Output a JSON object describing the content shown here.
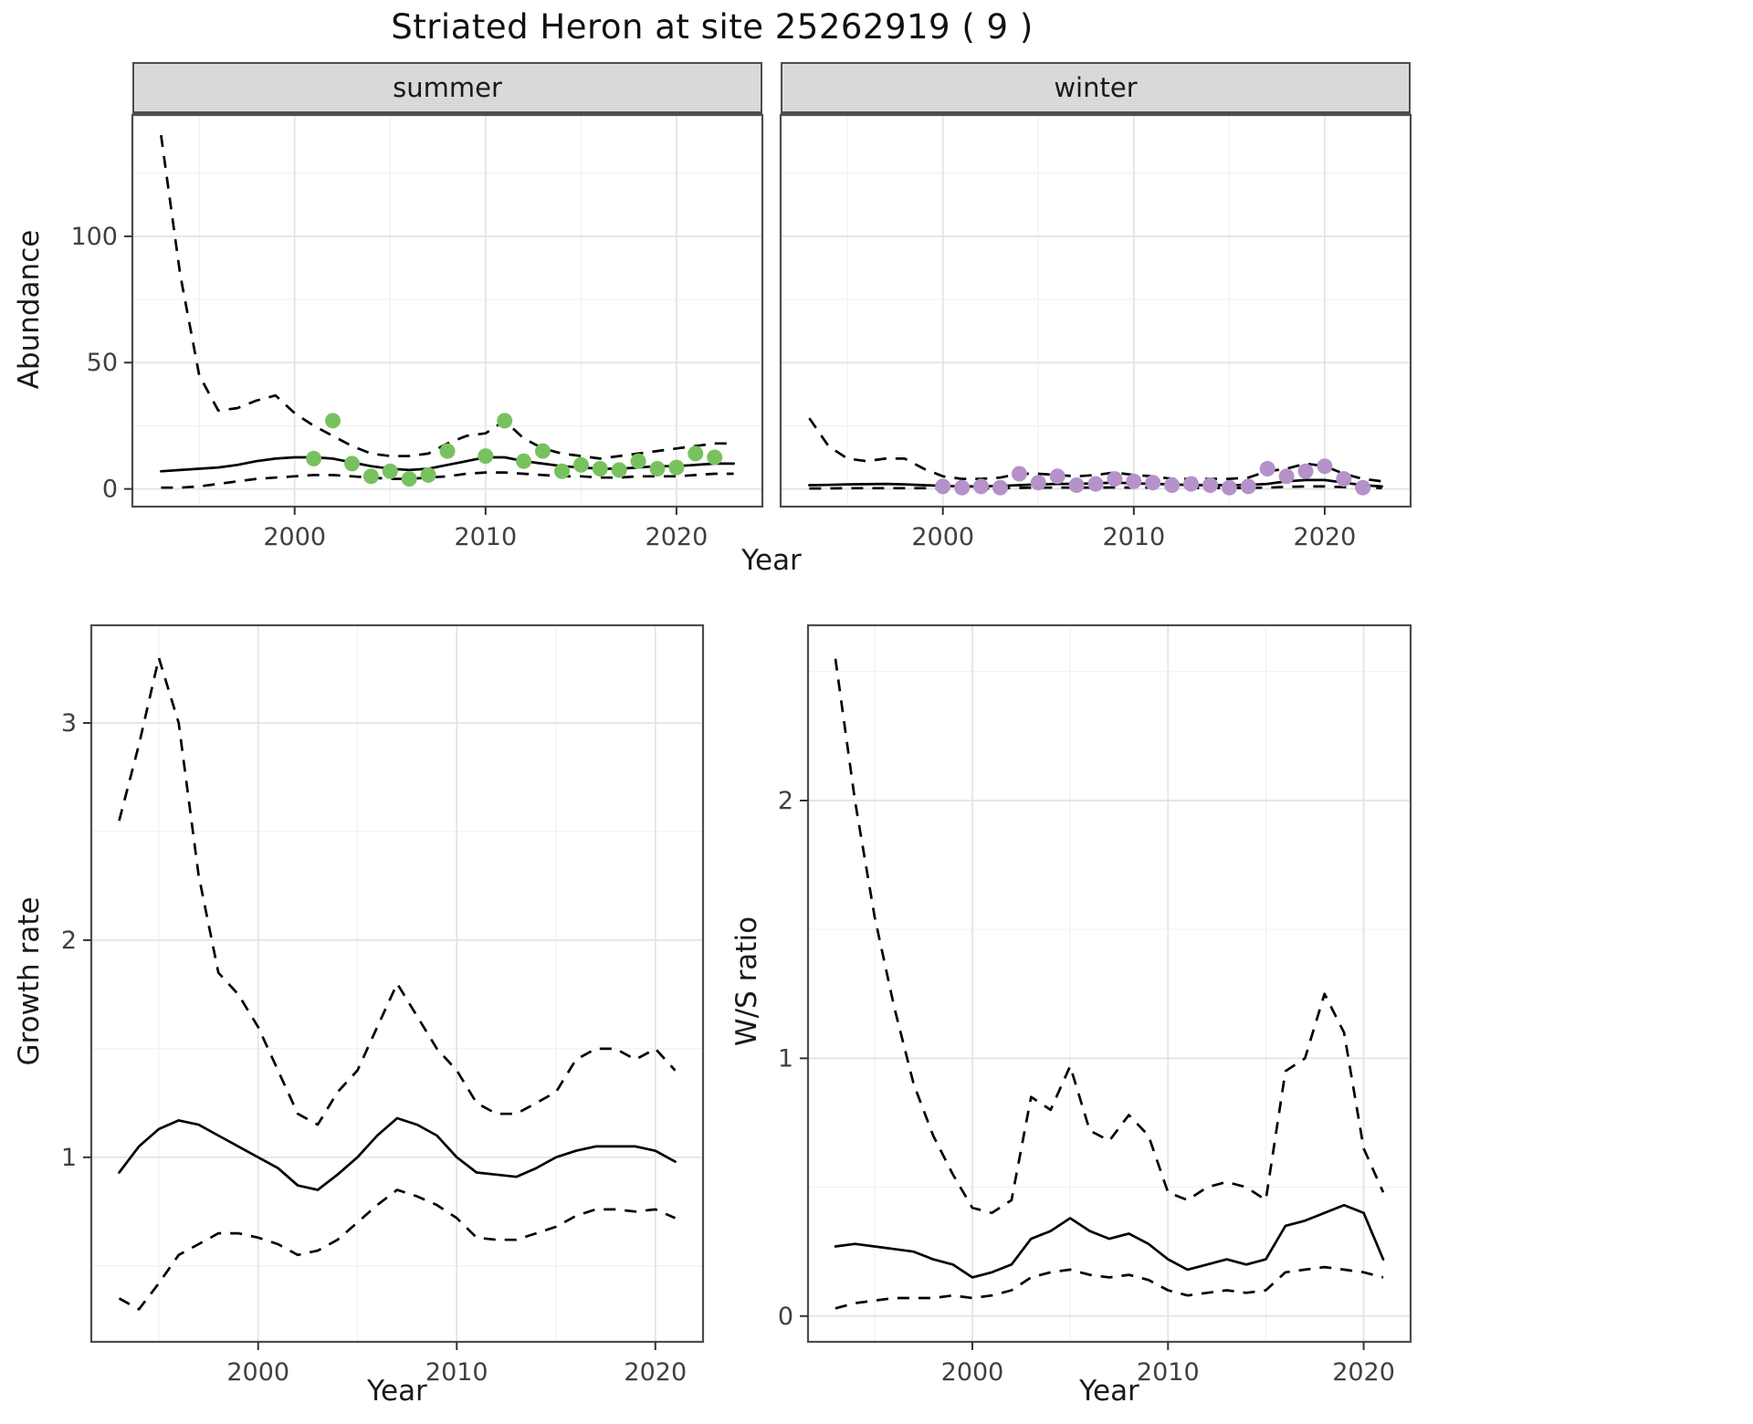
{
  "page": {
    "title": "Striated Heron at site 25262919 ( 9 )"
  },
  "colors": {
    "summer_point": "#77c25f",
    "winter_point": "#b592c9",
    "line": "#000000",
    "strip_bg": "#d9d9d9",
    "grid_major": "#e3e3e3",
    "grid_minor": "#f1f1f1",
    "panel_border": "#4d4d4d",
    "axis_text": "#404040"
  },
  "facets": {
    "summer": "summer",
    "winter": "winter"
  },
  "labels": {
    "y_top": "Abundance",
    "x_top": "Year",
    "y_growth": "Growth rate",
    "x_growth": "Year",
    "y_ws": "W/S ratio",
    "x_ws": "Year"
  },
  "chart_data": [
    {
      "id": "abundance-summer",
      "type": "line+scatter",
      "facet": "summer",
      "xlabel": "Year",
      "ylabel": "Abundance",
      "xlim": [
        1991.5,
        2024.5
      ],
      "ylim": [
        -7,
        148
      ],
      "xticks": [
        2000,
        2010,
        2020
      ],
      "yticks": [
        0,
        50,
        100
      ],
      "xticks_minor": [
        1995,
        2005,
        2015
      ],
      "yticks_minor": [
        25,
        75,
        125
      ],
      "legend": "off",
      "grid": "on",
      "series": [
        {
          "name": "fit",
          "style": "solid",
          "x": [
            1993,
            1994,
            1995,
            1996,
            1997,
            1998,
            1999,
            2000,
            2001,
            2002,
            2003,
            2004,
            2005,
            2006,
            2007,
            2008,
            2009,
            2010,
            2011,
            2012,
            2013,
            2014,
            2015,
            2016,
            2017,
            2018,
            2019,
            2020,
            2021,
            2022,
            2023
          ],
          "y": [
            7,
            7.5,
            8,
            8.5,
            9.5,
            11,
            12,
            12.5,
            12.5,
            12,
            10.5,
            9,
            8,
            7.5,
            8,
            9.5,
            11,
            12.5,
            12.5,
            11,
            10,
            9,
            8.5,
            8,
            8,
            8.5,
            9,
            9,
            9.5,
            10,
            10
          ]
        },
        {
          "name": "upper-ci",
          "style": "dashed",
          "x": [
            1993,
            1994,
            1995,
            1996,
            1997,
            1998,
            1999,
            2000,
            2001,
            2002,
            2003,
            2004,
            2005,
            2006,
            2007,
            2008,
            2009,
            2010,
            2011,
            2012,
            2013,
            2014,
            2015,
            2016,
            2017,
            2018,
            2019,
            2020,
            2021,
            2022,
            2023
          ],
          "y": [
            140,
            85,
            45,
            31,
            32,
            35,
            37,
            30,
            25,
            21,
            17,
            14,
            13,
            13,
            14,
            18,
            21,
            22,
            27,
            20,
            16,
            14,
            13,
            12,
            13,
            14,
            15,
            16,
            17,
            18,
            18
          ]
        },
        {
          "name": "lower-ci",
          "style": "dashed",
          "x": [
            1993,
            1994,
            1995,
            1996,
            1997,
            1998,
            1999,
            2000,
            2001,
            2002,
            2003,
            2004,
            2005,
            2006,
            2007,
            2008,
            2009,
            2010,
            2011,
            2012,
            2013,
            2014,
            2015,
            2016,
            2017,
            2018,
            2019,
            2020,
            2021,
            2022,
            2023
          ],
          "y": [
            0.5,
            0.5,
            1,
            2,
            3,
            4,
            4.5,
            5,
            5.5,
            5.5,
            5,
            4.5,
            4,
            4,
            4.5,
            5,
            6,
            6.5,
            6.5,
            6,
            5.5,
            5,
            5,
            4.5,
            4.5,
            5,
            5,
            5,
            5.5,
            6,
            6
          ]
        },
        {
          "name": "observations",
          "style": "points",
          "color": "#77c25f",
          "x": [
            2001,
            2002,
            2003,
            2004,
            2005,
            2006,
            2007,
            2008,
            2010,
            2011,
            2012,
            2013,
            2014,
            2015,
            2016,
            2017,
            2018,
            2019,
            2020,
            2021,
            2022
          ],
          "y": [
            12,
            27,
            10,
            5,
            7,
            4,
            5.5,
            15,
            13,
            27,
            11,
            15,
            7,
            9.5,
            8,
            7.5,
            11,
            8,
            8.5,
            14,
            12.5
          ]
        }
      ]
    },
    {
      "id": "abundance-winter",
      "type": "line+scatter",
      "facet": "winter",
      "xlabel": "Year",
      "ylabel": "Abundance",
      "xlim": [
        1991.5,
        2024.5
      ],
      "ylim": [
        -7,
        148
      ],
      "xticks": [
        2000,
        2010,
        2020
      ],
      "yticks": [
        0,
        50,
        100
      ],
      "xticks_minor": [
        1995,
        2005,
        2015
      ],
      "yticks_minor": [
        25,
        75,
        125
      ],
      "legend": "off",
      "grid": "on",
      "series": [
        {
          "name": "fit",
          "style": "solid",
          "x": [
            1993,
            1994,
            1995,
            1996,
            1997,
            1998,
            1999,
            2000,
            2001,
            2002,
            2003,
            2004,
            2005,
            2006,
            2007,
            2008,
            2009,
            2010,
            2011,
            2012,
            2013,
            2014,
            2015,
            2016,
            2017,
            2018,
            2019,
            2020,
            2021,
            2022,
            2023
          ],
          "y": [
            1.5,
            1.6,
            1.8,
            1.9,
            2,
            1.8,
            1.5,
            1.2,
            1,
            1,
            1.2,
            1.5,
            1.8,
            2,
            2,
            2.2,
            2.5,
            2.2,
            2,
            1.8,
            1.5,
            1.5,
            1.5,
            1.6,
            2,
            3,
            3.5,
            3.5,
            2.5,
            1.5,
            1
          ]
        },
        {
          "name": "upper-ci",
          "style": "dashed",
          "x": [
            1993,
            1994,
            1995,
            1996,
            1997,
            1998,
            1999,
            2000,
            2001,
            2002,
            2003,
            2004,
            2005,
            2006,
            2007,
            2008,
            2009,
            2010,
            2011,
            2012,
            2013,
            2014,
            2015,
            2016,
            2017,
            2018,
            2019,
            2020,
            2021,
            2022,
            2023
          ],
          "y": [
            28,
            17,
            12,
            11,
            12,
            12,
            8,
            5,
            4,
            4,
            4.5,
            6,
            6,
            5.5,
            5,
            5.5,
            6.5,
            5.5,
            5,
            4,
            4,
            4,
            4,
            4.5,
            7,
            8,
            10,
            9,
            6,
            4,
            3
          ]
        },
        {
          "name": "lower-ci",
          "style": "dashed",
          "x": [
            1993,
            1994,
            1995,
            1996,
            1997,
            1998,
            1999,
            2000,
            2001,
            2002,
            2003,
            2004,
            2005,
            2006,
            2007,
            2008,
            2009,
            2010,
            2011,
            2012,
            2013,
            2014,
            2015,
            2016,
            2017,
            2018,
            2019,
            2020,
            2021,
            2022,
            2023
          ],
          "y": [
            0.2,
            0.2,
            0.3,
            0.3,
            0.3,
            0.3,
            0.3,
            0.3,
            0.2,
            0.2,
            0.3,
            0.4,
            0.5,
            0.5,
            0.5,
            0.5,
            0.6,
            0.5,
            0.5,
            0.4,
            0.4,
            0.4,
            0.4,
            0.4,
            0.5,
            0.8,
            1,
            1,
            0.7,
            0.4,
            0.3
          ]
        },
        {
          "name": "observations",
          "style": "points",
          "color": "#b592c9",
          "x": [
            2000,
            2001,
            2002,
            2003,
            2004,
            2005,
            2006,
            2007,
            2008,
            2009,
            2010,
            2011,
            2012,
            2013,
            2014,
            2015,
            2016,
            2017,
            2018,
            2019,
            2020,
            2021,
            2022
          ],
          "y": [
            1,
            0.5,
            1,
            0.5,
            6,
            2.5,
            5,
            1.5,
            2,
            4,
            3,
            2.5,
            1.5,
            2,
            1.5,
            0.5,
            1,
            8,
            5,
            7,
            9,
            4,
            0.5
          ]
        }
      ]
    },
    {
      "id": "growth-rate",
      "type": "line",
      "xlabel": "Year",
      "ylabel": "Growth rate",
      "xlim": [
        1991.6,
        2022.4
      ],
      "ylim": [
        0.15,
        3.45
      ],
      "xticks": [
        2000,
        2010,
        2020
      ],
      "yticks": [
        1,
        2,
        3
      ],
      "xticks_minor": [
        1995,
        2005,
        2015
      ],
      "yticks_minor": [
        0.5,
        1.5,
        2.5
      ],
      "legend": "off",
      "grid": "on",
      "series": [
        {
          "name": "fit",
          "style": "solid",
          "x": [
            1993,
            1994,
            1995,
            1996,
            1997,
            1998,
            1999,
            2000,
            2001,
            2002,
            2003,
            2004,
            2005,
            2006,
            2007,
            2008,
            2009,
            2010,
            2011,
            2012,
            2013,
            2014,
            2015,
            2016,
            2017,
            2018,
            2019,
            2020,
            2021
          ],
          "y": [
            0.93,
            1.05,
            1.13,
            1.17,
            1.15,
            1.1,
            1.05,
            1.0,
            0.95,
            0.87,
            0.85,
            0.92,
            1.0,
            1.1,
            1.18,
            1.15,
            1.1,
            1.0,
            0.93,
            0.92,
            0.91,
            0.95,
            1.0,
            1.03,
            1.05,
            1.05,
            1.05,
            1.03,
            0.98
          ]
        },
        {
          "name": "upper-ci",
          "style": "dashed",
          "x": [
            1993,
            1994,
            1995,
            1996,
            1997,
            1998,
            1999,
            2000,
            2001,
            2002,
            2003,
            2004,
            2005,
            2006,
            2007,
            2008,
            2009,
            2010,
            2011,
            2012,
            2013,
            2014,
            2015,
            2016,
            2017,
            2018,
            2019,
            2020,
            2021
          ],
          "y": [
            2.55,
            2.9,
            3.3,
            3.0,
            2.3,
            1.85,
            1.75,
            1.6,
            1.4,
            1.2,
            1.15,
            1.3,
            1.4,
            1.6,
            1.8,
            1.65,
            1.5,
            1.4,
            1.25,
            1.2,
            1.2,
            1.25,
            1.3,
            1.45,
            1.5,
            1.5,
            1.45,
            1.5,
            1.4
          ]
        },
        {
          "name": "lower-ci",
          "style": "dashed",
          "x": [
            1993,
            1994,
            1995,
            1996,
            1997,
            1998,
            1999,
            2000,
            2001,
            2002,
            2003,
            2004,
            2005,
            2006,
            2007,
            2008,
            2009,
            2010,
            2011,
            2012,
            2013,
            2014,
            2015,
            2016,
            2017,
            2018,
            2019,
            2020,
            2021
          ],
          "y": [
            0.35,
            0.3,
            0.42,
            0.55,
            0.6,
            0.65,
            0.65,
            0.63,
            0.6,
            0.55,
            0.57,
            0.62,
            0.7,
            0.78,
            0.85,
            0.82,
            0.78,
            0.72,
            0.63,
            0.62,
            0.62,
            0.65,
            0.68,
            0.73,
            0.76,
            0.76,
            0.75,
            0.76,
            0.72
          ]
        }
      ]
    },
    {
      "id": "ws-ratio",
      "type": "line",
      "xlabel": "Year",
      "ylabel": "W/S ratio",
      "xlim": [
        1991.6,
        2022.4
      ],
      "ylim": [
        -0.1,
        2.68
      ],
      "xticks": [
        2000,
        2010,
        2020
      ],
      "yticks": [
        0,
        1,
        2
      ],
      "xticks_minor": [
        1995,
        2005,
        2015
      ],
      "yticks_minor": [
        0.5,
        1.5,
        2.5
      ],
      "legend": "off",
      "grid": "on",
      "series": [
        {
          "name": "fit",
          "style": "solid",
          "x": [
            1993,
            1994,
            1995,
            1996,
            1997,
            1998,
            1999,
            2000,
            2001,
            2002,
            2003,
            2004,
            2005,
            2006,
            2007,
            2008,
            2009,
            2010,
            2011,
            2012,
            2013,
            2014,
            2015,
            2016,
            2017,
            2018,
            2019,
            2020,
            2021
          ],
          "y": [
            0.27,
            0.28,
            0.27,
            0.26,
            0.25,
            0.22,
            0.2,
            0.15,
            0.17,
            0.2,
            0.3,
            0.33,
            0.38,
            0.33,
            0.3,
            0.32,
            0.28,
            0.22,
            0.18,
            0.2,
            0.22,
            0.2,
            0.22,
            0.35,
            0.37,
            0.4,
            0.43,
            0.4,
            0.22
          ]
        },
        {
          "name": "upper-ci",
          "style": "dashed",
          "x": [
            1993,
            1994,
            1995,
            1996,
            1997,
            1998,
            1999,
            2000,
            2001,
            2002,
            2003,
            2004,
            2005,
            2006,
            2007,
            2008,
            2009,
            2010,
            2011,
            2012,
            2013,
            2014,
            2015,
            2016,
            2017,
            2018,
            2019,
            2020,
            2021
          ],
          "y": [
            2.55,
            2.0,
            1.55,
            1.2,
            0.9,
            0.7,
            0.55,
            0.42,
            0.4,
            0.45,
            0.85,
            0.8,
            0.97,
            0.72,
            0.68,
            0.78,
            0.7,
            0.48,
            0.45,
            0.5,
            0.52,
            0.5,
            0.45,
            0.95,
            1.0,
            1.25,
            1.1,
            0.65,
            0.48
          ]
        },
        {
          "name": "lower-ci",
          "style": "dashed",
          "x": [
            1993,
            1994,
            1995,
            1996,
            1997,
            1998,
            1999,
            2000,
            2001,
            2002,
            2003,
            2004,
            2005,
            2006,
            2007,
            2008,
            2009,
            2010,
            2011,
            2012,
            2013,
            2014,
            2015,
            2016,
            2017,
            2018,
            2019,
            2020,
            2021
          ],
          "y": [
            0.03,
            0.05,
            0.06,
            0.07,
            0.07,
            0.07,
            0.08,
            0.07,
            0.08,
            0.1,
            0.15,
            0.17,
            0.18,
            0.16,
            0.15,
            0.16,
            0.14,
            0.1,
            0.08,
            0.09,
            0.1,
            0.09,
            0.1,
            0.17,
            0.18,
            0.19,
            0.18,
            0.17,
            0.15
          ]
        }
      ]
    }
  ]
}
